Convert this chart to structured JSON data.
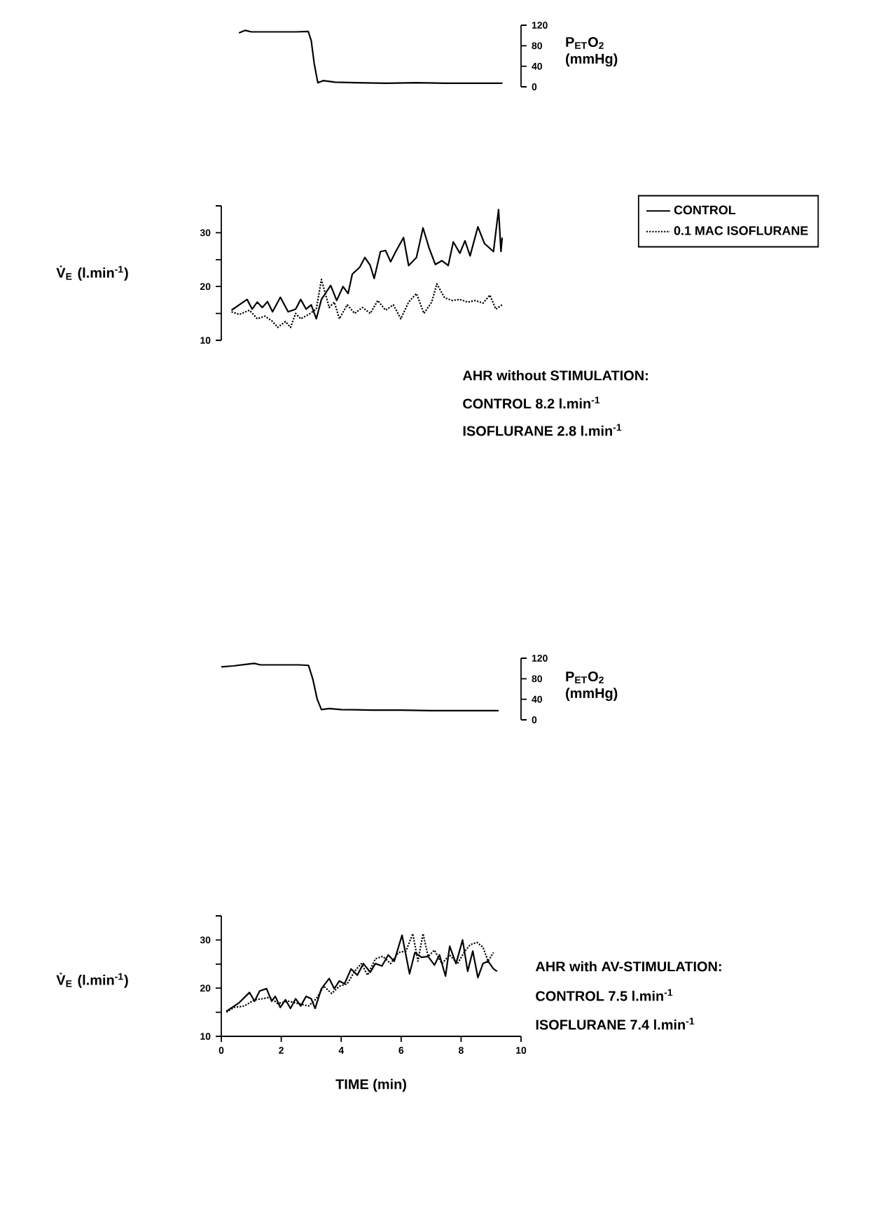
{
  "chart_data": [
    {
      "type": "line",
      "ylabel": "P$_{ET}$O$_{2}$ (mmHg)",
      "xlim": [
        0,
        10
      ],
      "ylim": [
        0,
        120
      ],
      "yticks": [
        0,
        40,
        80,
        120
      ],
      "tick_labels": "y",
      "series": [
        {
          "color": "#000000",
          "line_style": "solid",
          "x": [
            0.59,
            0.8,
            1.0,
            1.5,
            2.0,
            2.5,
            2.9,
            3.0,
            3.1,
            3.22,
            3.4,
            3.8,
            4.5,
            5.5,
            6.5,
            7.5,
            8.5,
            9.38
          ],
          "values": [
            105,
            110,
            107,
            107,
            107,
            107,
            108,
            90,
            45,
            8,
            12,
            9,
            8,
            7,
            8,
            7,
            7,
            7
          ]
        }
      ]
    },
    {
      "type": "line",
      "ylabel": "V̇$_{E}$ (l.min$^{-1}$)",
      "xlim": [
        0,
        10
      ],
      "ylim": [
        10,
        35
      ],
      "yticks": [
        10,
        {
          "value": 15,
          "label": null
        },
        20,
        {
          "value": 25,
          "label": null
        },
        30,
        {
          "value": 35,
          "label": null
        }
      ],
      "tick_labels": "y",
      "legend": "top right",
      "annotations": [
        "AHR without STIMULATION:",
        "CONTROL 8.2 l.min$^{-1}$",
        "ISOFLURANE 2.8 l.min$^{-1}$"
      ],
      "series": [
        {
          "name": "CONTROL",
          "color": "#000000",
          "line_style": "solid",
          "x": [
            0.34,
            0.86,
            1.03,
            1.2,
            1.37,
            1.54,
            1.71,
            1.97,
            2.23,
            2.48,
            2.65,
            2.83,
            3.0,
            3.17,
            3.34,
            3.65,
            3.85,
            4.06,
            4.23,
            4.37,
            4.62,
            4.79,
            4.97,
            5.1,
            5.31,
            5.48,
            5.65,
            5.82,
            6.08,
            6.25,
            6.51,
            6.73,
            6.93,
            7.14,
            7.36,
            7.57,
            7.74,
            7.96,
            8.13,
            8.3,
            8.56,
            8.78,
            9.08,
            9.25,
            9.33,
            9.37
          ],
          "values": [
            15.6,
            17.6,
            15.8,
            17.1,
            16.1,
            17.2,
            15.3,
            18.0,
            15.3,
            15.8,
            17.6,
            15.8,
            16.6,
            14.0,
            17.6,
            20.2,
            17.4,
            20.0,
            18.7,
            22.3,
            23.6,
            25.4,
            23.9,
            21.5,
            26.5,
            26.7,
            24.6,
            26.5,
            29.1,
            23.9,
            25.4,
            30.9,
            27.2,
            24.1,
            24.8,
            23.9,
            28.3,
            26.2,
            28.5,
            25.7,
            31.1,
            28.0,
            26.5,
            34.3,
            26.5,
            29.1
          ]
        },
        {
          "name": "0.1 MAC ISOFLURANE",
          "color": "#000000",
          "line_style": "dotted",
          "x": [
            0.34,
            0.6,
            0.94,
            1.2,
            1.46,
            1.71,
            1.88,
            2.14,
            2.31,
            2.48,
            2.65,
            2.91,
            3.17,
            3.34,
            3.6,
            3.77,
            3.94,
            4.2,
            4.45,
            4.71,
            4.97,
            5.22,
            5.48,
            5.74,
            5.99,
            6.25,
            6.51,
            6.76,
            7.02,
            7.19,
            7.45,
            7.71,
            7.96,
            8.22,
            8.48,
            8.73,
            8.96,
            9.16,
            9.37
          ],
          "values": [
            15.3,
            14.8,
            15.6,
            14.0,
            14.5,
            13.5,
            12.4,
            13.5,
            12.4,
            15.0,
            14.0,
            14.8,
            15.8,
            21.3,
            16.1,
            17.1,
            14.0,
            16.6,
            15.0,
            16.1,
            15.0,
            17.4,
            15.6,
            16.6,
            14.0,
            17.1,
            18.7,
            15.0,
            17.1,
            20.5,
            17.9,
            17.4,
            17.6,
            17.1,
            17.4,
            16.9,
            18.4,
            15.8,
            16.6
          ]
        }
      ]
    },
    {
      "type": "line",
      "ylabel": "P$_{ET}$O$_{2}$ (mmHg)",
      "xlim": [
        0,
        10
      ],
      "ylim": [
        0,
        120
      ],
      "yticks": [
        0,
        40,
        80,
        120
      ],
      "tick_labels": "y",
      "series": [
        {
          "color": "#000000",
          "line_style": "solid",
          "x": [
            0,
            0.4,
            0.8,
            1.1,
            1.3,
            2.0,
            2.6,
            2.91,
            3.05,
            3.2,
            3.34,
            3.6,
            4.0,
            5,
            6,
            7,
            8,
            9.25
          ],
          "values": [
            103,
            105,
            108,
            110,
            107,
            107,
            107,
            106,
            80,
            40,
            20,
            22,
            20,
            19,
            19,
            18,
            18,
            18
          ]
        }
      ]
    },
    {
      "type": "line",
      "xlabel": "TIME (min)",
      "ylabel": "V̇$_{E}$ (l.min$^{-1}$)",
      "xlim": [
        0,
        10
      ],
      "ylim": [
        10,
        35
      ],
      "xticks": [
        0,
        2,
        4,
        6,
        8,
        10
      ],
      "yticks": [
        10,
        {
          "value": 15,
          "label": null
        },
        20,
        {
          "value": 25,
          "label": null
        },
        30,
        {
          "value": 35,
          "label": null
        }
      ],
      "annotations": [
        "AHR with AV-STIMULATION:",
        "CONTROL 7.5 l.min$^{-1}$",
        "ISOFLURANE 7.4 l.min$^{-1}$"
      ],
      "series": [
        {
          "color": "#000000",
          "line_style": "solid",
          "x": [
            0.17,
            0.6,
            0.94,
            1.11,
            1.28,
            1.51,
            1.68,
            1.8,
            1.97,
            2.14,
            2.31,
            2.48,
            2.65,
            2.83,
            3.0,
            3.13,
            3.34,
            3.6,
            3.77,
            3.94,
            4.11,
            4.33,
            4.54,
            4.74,
            4.97,
            5.14,
            5.36,
            5.57,
            5.77,
            6.03,
            6.28,
            6.46,
            6.68,
            6.9,
            7.11,
            7.28,
            7.48,
            7.62,
            7.83,
            8.05,
            8.22,
            8.39,
            8.56,
            8.73,
            8.9,
            9.08,
            9.2
          ],
          "values": [
            15.2,
            17.0,
            19.1,
            17.3,
            19.4,
            19.9,
            17.3,
            18.3,
            16.0,
            17.6,
            15.8,
            17.8,
            16.3,
            18.3,
            17.8,
            15.8,
            19.9,
            22.0,
            19.9,
            21.5,
            20.9,
            24.0,
            22.7,
            25.1,
            23.3,
            25.1,
            24.6,
            26.9,
            25.6,
            31.0,
            23.0,
            27.4,
            26.4,
            26.6,
            24.8,
            26.9,
            22.5,
            28.7,
            25.1,
            30.0,
            23.5,
            27.7,
            22.2,
            25.1,
            25.6,
            24.0,
            23.5
          ]
        },
        {
          "color": "#000000",
          "line_style": "dotted",
          "x": [
            0.17,
            0.43,
            0.77,
            1.11,
            1.37,
            1.63,
            1.88,
            2.23,
            2.57,
            2.91,
            3.17,
            3.42,
            3.68,
            3.94,
            4.2,
            4.45,
            4.67,
            4.88,
            5.14,
            5.39,
            5.65,
            5.91,
            6.16,
            6.39,
            6.56,
            6.73,
            6.9,
            7.11,
            7.36,
            7.62,
            7.88,
            8.13,
            8.3,
            8.53,
            8.73,
            8.9,
            9.08
          ],
          "values": [
            15.0,
            16.0,
            16.3,
            17.6,
            17.8,
            18.1,
            16.8,
            17.3,
            16.8,
            16.3,
            17.8,
            20.4,
            18.9,
            20.4,
            20.9,
            23.5,
            25.1,
            22.7,
            26.1,
            26.6,
            25.1,
            27.4,
            27.7,
            31.3,
            25.6,
            31.3,
            26.6,
            27.9,
            25.1,
            26.9,
            25.1,
            27.7,
            29.0,
            29.5,
            28.5,
            25.6,
            27.4
          ]
        }
      ]
    }
  ]
}
